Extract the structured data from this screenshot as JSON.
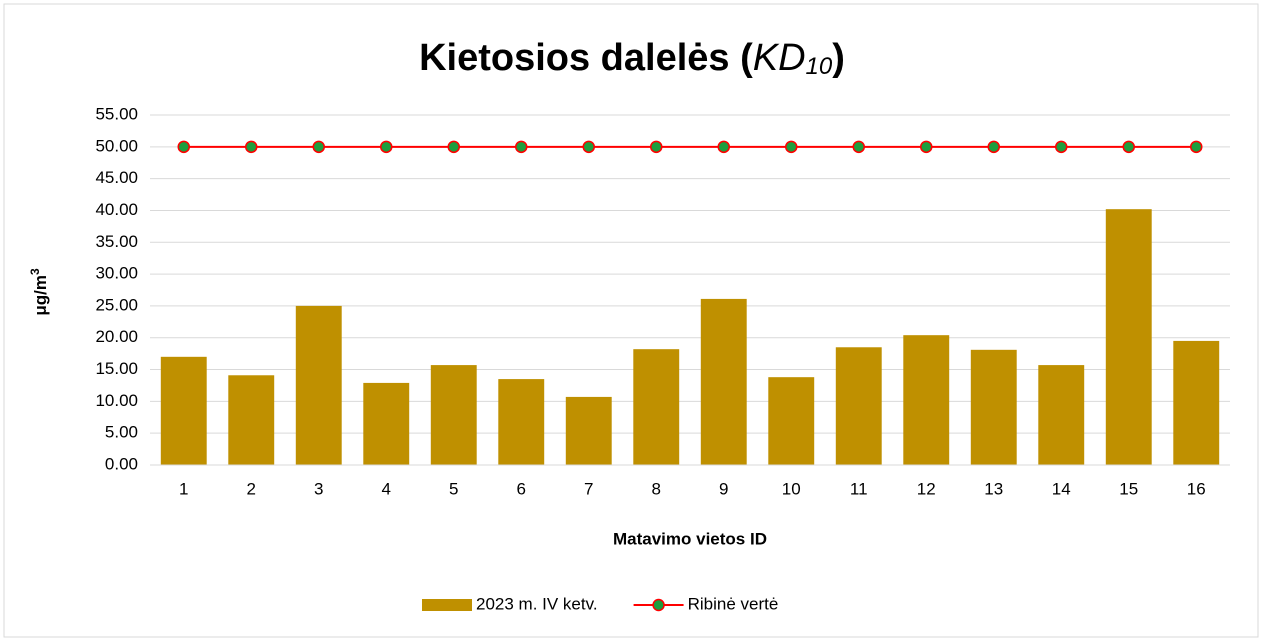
{
  "chart_data": {
    "type": "bar_line",
    "title": [
      "Kietosios dalelės (",
      "KD",
      "10",
      ")"
    ],
    "ylabel": [
      "μg/m",
      "3"
    ],
    "xlabel": "Matavimo vietos ID",
    "categories": [
      "1",
      "2",
      "3",
      "4",
      "5",
      "6",
      "7",
      "8",
      "9",
      "10",
      "11",
      "12",
      "13",
      "14",
      "15",
      "16"
    ],
    "series": [
      {
        "name": "2023 m. IV ketv.",
        "type": "bar",
        "color": "#bf9000",
        "values": [
          17.0,
          14.1,
          25.0,
          12.9,
          15.7,
          13.5,
          10.7,
          18.2,
          26.1,
          13.8,
          18.5,
          20.4,
          18.1,
          15.7,
          40.2,
          19.5
        ]
      },
      {
        "name": "Ribinė vertė",
        "type": "line",
        "color": "#ff0000",
        "marker_color": "#1e9e3e",
        "values": [
          50,
          50,
          50,
          50,
          50,
          50,
          50,
          50,
          50,
          50,
          50,
          50,
          50,
          50,
          50,
          50
        ]
      }
    ],
    "ylim": [
      0,
      55
    ],
    "yticks": [
      {
        "value": 0,
        "label": "0.00"
      },
      {
        "value": 5,
        "label": "5.00"
      },
      {
        "value": 10,
        "label": "10.00"
      },
      {
        "value": 15,
        "label": "15.00"
      },
      {
        "value": 20,
        "label": "20.00"
      },
      {
        "value": 25,
        "label": "25.00"
      },
      {
        "value": 30,
        "label": "30.00"
      },
      {
        "value": 35,
        "label": "35.00"
      },
      {
        "value": 40,
        "label": "40.00"
      },
      {
        "value": 45,
        "label": "45.00"
      },
      {
        "value": 50,
        "label": "50.00"
      },
      {
        "value": 55,
        "label": "55.00"
      }
    ],
    "grid": true,
    "legend": "bottom"
  }
}
